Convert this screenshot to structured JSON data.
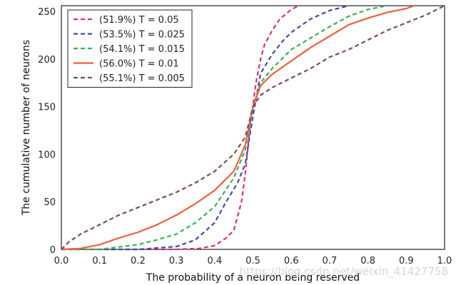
{
  "chart_data": {
    "type": "line",
    "title": "",
    "xlabel": "The probability of a neuron being reserved",
    "ylabel": "The cumulative number of neurons",
    "xlim": [
      0.0,
      1.0
    ],
    "ylim": [
      0,
      256
    ],
    "xticks": [
      "0.0",
      "0.1",
      "0.2",
      "0.3",
      "0.4",
      "0.5",
      "0.6",
      "0.7",
      "0.8",
      "0.9",
      "1.0"
    ],
    "yticks": [
      "0",
      "50",
      "100",
      "150",
      "200",
      "250"
    ],
    "grid": false,
    "legend_position": "top-left",
    "series": [
      {
        "name": "(51.9%) T = 0.05",
        "color": "#d6317a",
        "style": "dashed",
        "x": [
          0.0,
          0.3,
          0.36,
          0.4,
          0.43,
          0.45,
          0.47,
          0.48,
          0.49,
          0.495,
          0.5,
          0.505,
          0.51,
          0.52,
          0.53,
          0.55,
          0.57,
          0.6,
          0.62
        ],
        "y": [
          0,
          0,
          1,
          4,
          12,
          20,
          50,
          80,
          120,
          140,
          150,
          168,
          180,
          200,
          215,
          230,
          242,
          252,
          256
        ]
      },
      {
        "name": "(53.5%) T = 0.025",
        "color": "#3b4fa3",
        "style": "dashed",
        "x": [
          0.0,
          0.2,
          0.3,
          0.35,
          0.4,
          0.43,
          0.46,
          0.48,
          0.5,
          0.52,
          0.55,
          0.58,
          0.6,
          0.65,
          0.7,
          0.75
        ],
        "y": [
          0,
          0,
          3,
          10,
          28,
          50,
          70,
          90,
          140,
          185,
          205,
          220,
          228,
          242,
          251,
          256
        ]
      },
      {
        "name": "(54.1%) T = 0.015",
        "color": "#3fae5a",
        "style": "dashed",
        "x": [
          0.0,
          0.1,
          0.2,
          0.25,
          0.3,
          0.35,
          0.4,
          0.45,
          0.48,
          0.5,
          0.52,
          0.55,
          0.6,
          0.65,
          0.7,
          0.75,
          0.8,
          0.85
        ],
        "y": [
          0,
          0,
          5,
          10,
          16,
          28,
          45,
          75,
          105,
          150,
          175,
          190,
          210,
          222,
          234,
          245,
          252,
          256
        ]
      },
      {
        "name": "(56.0%) T = 0.01",
        "color": "#e8613c",
        "style": "solid",
        "x": [
          0.0,
          0.05,
          0.1,
          0.15,
          0.2,
          0.25,
          0.3,
          0.35,
          0.4,
          0.45,
          0.48,
          0.5,
          0.52,
          0.55,
          0.6,
          0.65,
          0.7,
          0.75,
          0.8,
          0.85,
          0.9,
          0.92
        ],
        "y": [
          0,
          1,
          5,
          12,
          18,
          26,
          36,
          48,
          62,
          82,
          110,
          150,
          172,
          184,
          198,
          212,
          224,
          236,
          243,
          249,
          253,
          256
        ]
      },
      {
        "name": "(55.1%) T = 0.005",
        "color": "#7a5248",
        "style": "dashed",
        "x": [
          0.0,
          0.02,
          0.05,
          0.1,
          0.15,
          0.2,
          0.25,
          0.3,
          0.35,
          0.4,
          0.45,
          0.48,
          0.5,
          0.52,
          0.55,
          0.6,
          0.65,
          0.7,
          0.75,
          0.8,
          0.85,
          0.9,
          0.95,
          1.0
        ],
        "y": [
          0,
          8,
          16,
          26,
          36,
          44,
          52,
          60,
          70,
          82,
          100,
          118,
          150,
          162,
          170,
          180,
          190,
          202,
          210,
          220,
          230,
          238,
          246,
          256
        ]
      }
    ],
    "watermark": "https://blog.csdn.net/weixin_41427758"
  }
}
